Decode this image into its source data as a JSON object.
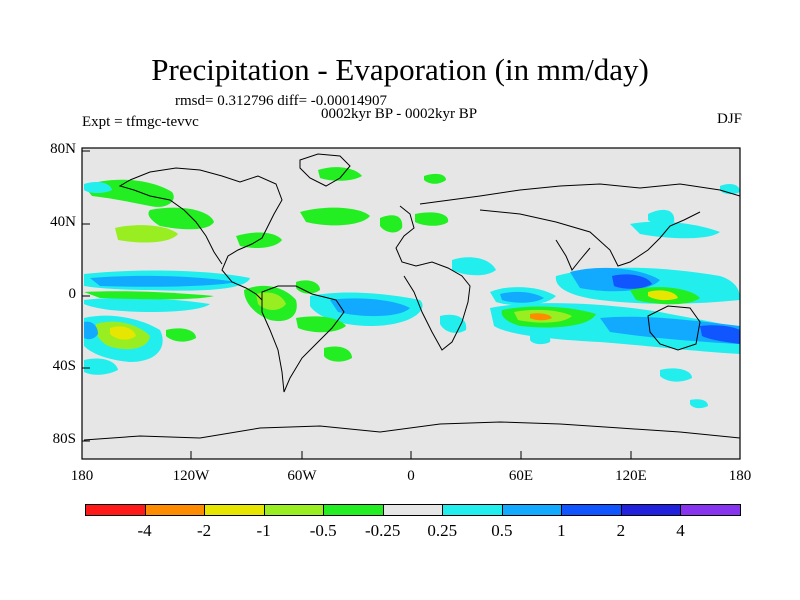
{
  "header": {
    "title": "Precipitation - Evaporation (in mm/day)",
    "stats": "rmsd= 0.312796 diff= -0.00014907",
    "period": "0002kyr BP - 0002kyr BP",
    "experiment": "Expt = tfmgc-tevvc",
    "season": "DJF"
  },
  "map": {
    "lat_ticks": [
      "80N",
      "40N",
      "0",
      "40S",
      "80S"
    ],
    "lon_ticks": [
      "180",
      "120W",
      "60W",
      "0",
      "60E",
      "120E",
      "180"
    ]
  },
  "colorbar": {
    "colors": [
      "#ff1a1a",
      "#ff8c00",
      "#e6e600",
      "#99ee22",
      "#22ee22",
      "#e6e6e6",
      "#22eeee",
      "#11aaff",
      "#1155ff",
      "#2222dd",
      "#8833ee"
    ],
    "labels": [
      "-4",
      "-2",
      "-1",
      "-0.5",
      "-0.25",
      "0.25",
      "0.5",
      "1",
      "2",
      "4"
    ]
  }
}
